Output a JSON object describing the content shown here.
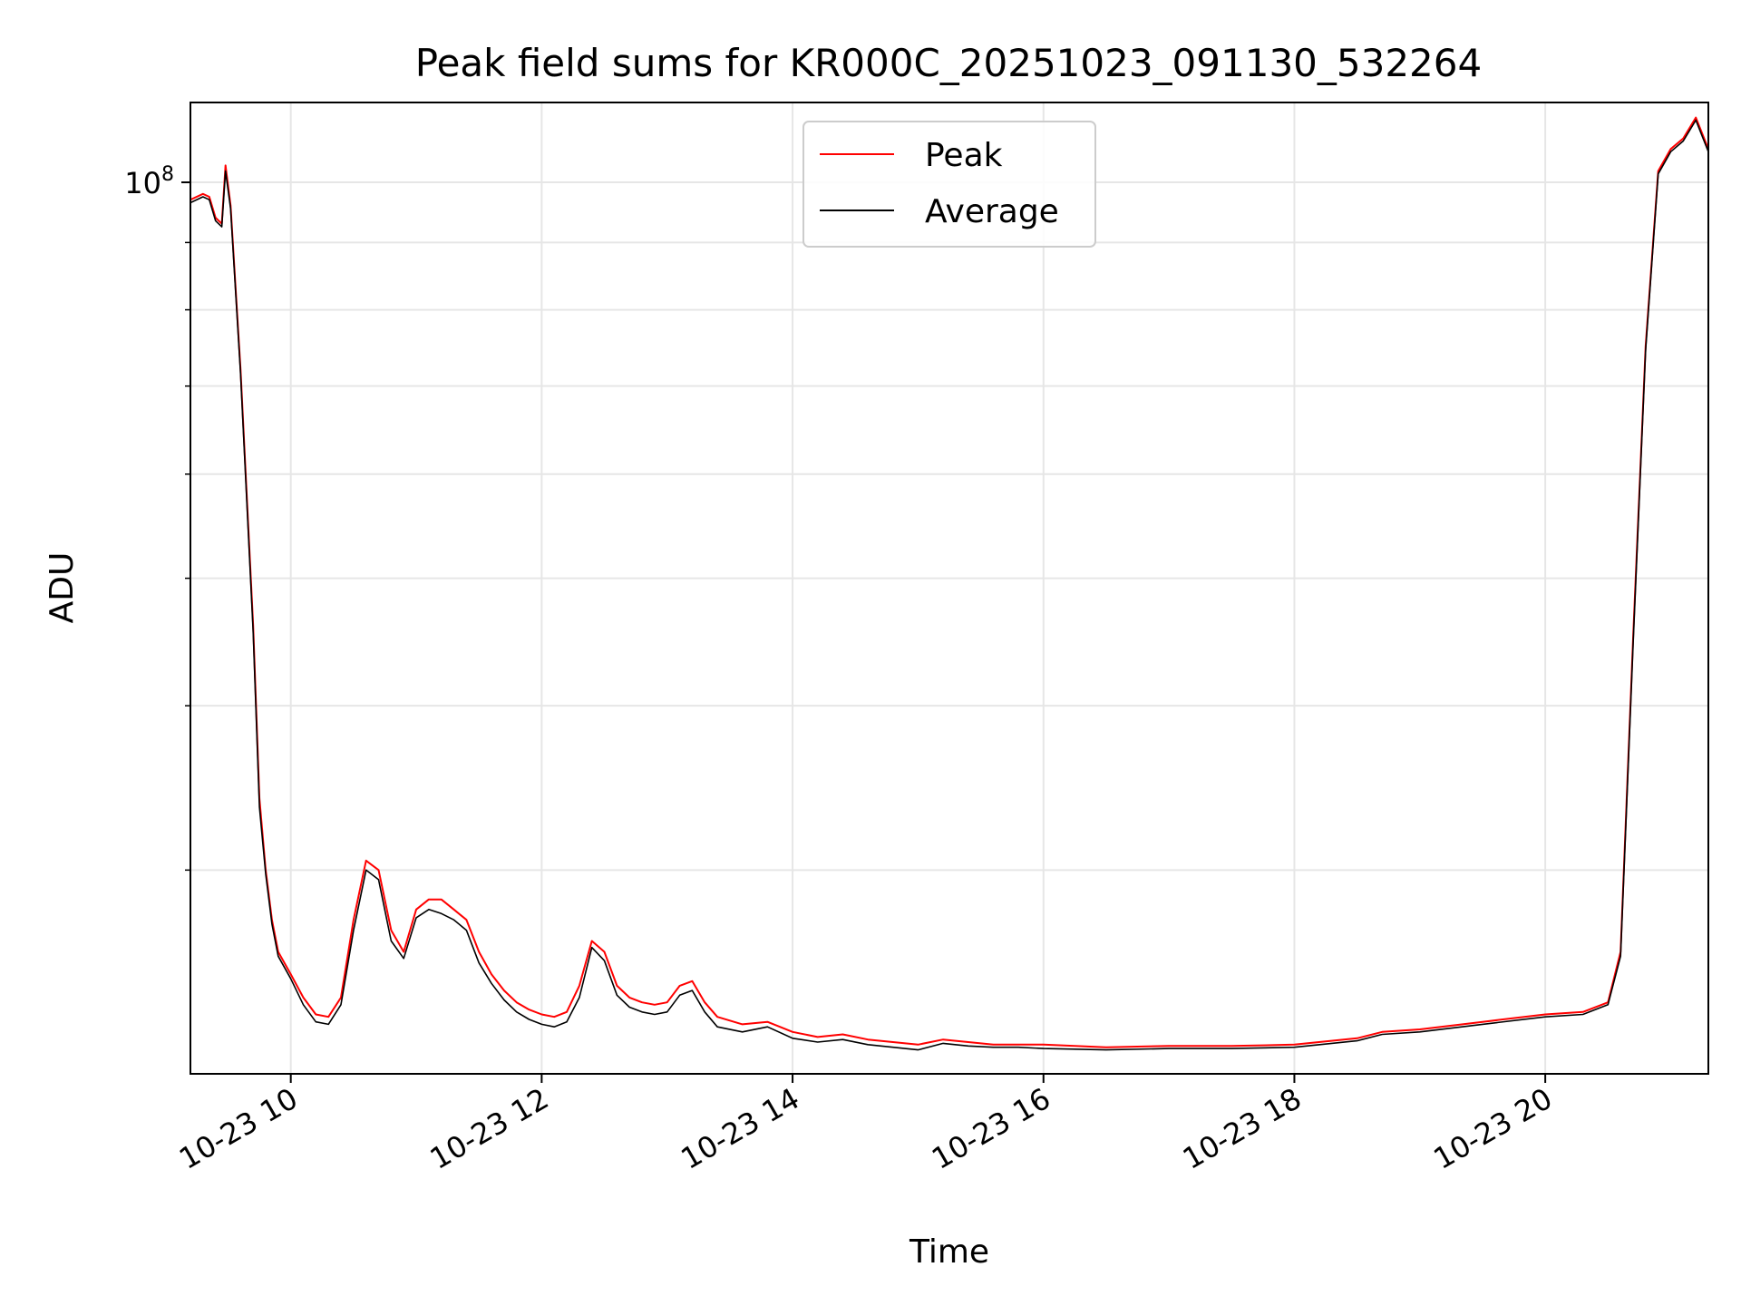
{
  "chart_data": {
    "type": "line",
    "title": "Peak field sums for KR000C_20251023_091130_532264",
    "xlabel": "Time",
    "ylabel": "ADU",
    "yscale": "log",
    "ylim": [
      21000000,
      115000000
    ],
    "xlim": [
      9.2,
      21.3
    ],
    "grid": true,
    "legend_position": "upper center",
    "x_ticks": [
      {
        "value": 10,
        "label": "10-23 10"
      },
      {
        "value": 12,
        "label": "10-23 12"
      },
      {
        "value": 14,
        "label": "10-23 14"
      },
      {
        "value": 16,
        "label": "10-23 16"
      },
      {
        "value": 18,
        "label": "10-23 18"
      },
      {
        "value": 20,
        "label": "10-23 20"
      }
    ],
    "y_ticks_major": [
      {
        "value": 100000000,
        "base": "10",
        "exp": "8"
      }
    ],
    "y_ticks_minor": [
      30000000,
      40000000,
      50000000,
      60000000,
      70000000,
      80000000,
      90000000
    ],
    "x_units": "hour of 2025-10-23",
    "series": [
      {
        "name": "Peak",
        "color": "#ff0000",
        "x": [
          9.2,
          9.3,
          9.35,
          9.4,
          9.45,
          9.48,
          9.52,
          9.6,
          9.7,
          9.75,
          9.8,
          9.85,
          9.9,
          10.0,
          10.1,
          10.2,
          10.3,
          10.4,
          10.5,
          10.6,
          10.7,
          10.8,
          10.9,
          11.0,
          11.1,
          11.2,
          11.3,
          11.4,
          11.5,
          11.6,
          11.7,
          11.8,
          11.9,
          12.0,
          12.1,
          12.2,
          12.3,
          12.4,
          12.5,
          12.6,
          12.7,
          12.8,
          12.9,
          13.0,
          13.1,
          13.2,
          13.3,
          13.4,
          13.6,
          13.8,
          14.0,
          14.2,
          14.4,
          14.6,
          14.8,
          15.0,
          15.2,
          15.4,
          15.6,
          15.8,
          16.0,
          16.5,
          17.0,
          17.5,
          18.0,
          18.5,
          18.7,
          19.0,
          19.5,
          20.0,
          20.3,
          20.5,
          20.6,
          20.7,
          20.8,
          20.9,
          21.0,
          21.1,
          21.2,
          21.3
        ],
        "y": [
          97000000,
          98000000,
          97500000,
          94000000,
          93000000,
          103000000,
          96000000,
          72000000,
          46000000,
          34000000,
          30000000,
          27500000,
          26000000,
          25000000,
          24000000,
          23300000,
          23200000,
          24000000,
          27500000,
          30500000,
          30000000,
          27000000,
          26000000,
          28000000,
          28500000,
          28500000,
          28000000,
          27500000,
          26000000,
          25000000,
          24300000,
          23800000,
          23500000,
          23300000,
          23200000,
          23400000,
          24500000,
          26500000,
          26000000,
          24500000,
          24000000,
          23800000,
          23700000,
          23800000,
          24500000,
          24700000,
          23800000,
          23200000,
          22900000,
          23000000,
          22600000,
          22400000,
          22500000,
          22300000,
          22200000,
          22100000,
          22300000,
          22200000,
          22100000,
          22100000,
          22100000,
          22000000,
          22050000,
          22050000,
          22100000,
          22350000,
          22600000,
          22700000,
          23000000,
          23300000,
          23400000,
          23800000,
          26000000,
          45000000,
          75000000,
          102000000,
          106000000,
          108000000,
          112000000,
          106000000
        ]
      },
      {
        "name": "Average",
        "color": "#000000",
        "x": [
          9.2,
          9.3,
          9.35,
          9.4,
          9.45,
          9.48,
          9.52,
          9.6,
          9.7,
          9.75,
          9.8,
          9.85,
          9.9,
          10.0,
          10.1,
          10.2,
          10.3,
          10.4,
          10.5,
          10.6,
          10.7,
          10.8,
          10.9,
          11.0,
          11.1,
          11.2,
          11.3,
          11.4,
          11.5,
          11.6,
          11.7,
          11.8,
          11.9,
          12.0,
          12.1,
          12.2,
          12.3,
          12.4,
          12.5,
          12.6,
          12.7,
          12.8,
          12.9,
          13.0,
          13.1,
          13.2,
          13.3,
          13.4,
          13.6,
          13.8,
          14.0,
          14.2,
          14.4,
          14.6,
          14.8,
          15.0,
          15.2,
          15.4,
          15.6,
          15.8,
          16.0,
          16.5,
          17.0,
          17.5,
          18.0,
          18.5,
          18.7,
          19.0,
          19.5,
          20.0,
          20.3,
          20.5,
          20.6,
          20.7,
          20.8,
          20.9,
          21.0,
          21.1,
          21.2,
          21.3
        ],
        "y": [
          96500000,
          97500000,
          97000000,
          93500000,
          92500000,
          102000000,
          95500000,
          71500000,
          45500000,
          33500000,
          29800000,
          27300000,
          25800000,
          24800000,
          23700000,
          23000000,
          22900000,
          23700000,
          27000000,
          30000000,
          29500000,
          26500000,
          25700000,
          27600000,
          28000000,
          27800000,
          27500000,
          27000000,
          25500000,
          24600000,
          23900000,
          23400000,
          23100000,
          22900000,
          22800000,
          23000000,
          24000000,
          26200000,
          25600000,
          24100000,
          23600000,
          23400000,
          23300000,
          23400000,
          24100000,
          24300000,
          23400000,
          22800000,
          22600000,
          22800000,
          22350000,
          22200000,
          22300000,
          22100000,
          22000000,
          21900000,
          22150000,
          22050000,
          22000000,
          22000000,
          21950000,
          21900000,
          21950000,
          21950000,
          22000000,
          22250000,
          22500000,
          22600000,
          22900000,
          23200000,
          23300000,
          23700000,
          25800000,
          44500000,
          74500000,
          101500000,
          105500000,
          107500000,
          111500000,
          105500000
        ]
      }
    ],
    "legend": [
      {
        "name": "Peak",
        "color": "#ff0000"
      },
      {
        "name": "Average",
        "color": "#000000"
      }
    ]
  }
}
